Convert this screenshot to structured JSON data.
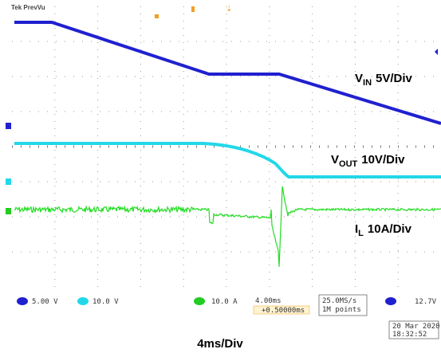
{
  "header": {
    "title": "Tek PrevVu"
  },
  "channel_labels": [
    {
      "symbol": "V",
      "subscript": "IN",
      "scale": "5V/Div"
    },
    {
      "symbol": "V",
      "subscript": "OUT",
      "scale": "10V/Div"
    },
    {
      "symbol": "I",
      "subscript": "L",
      "scale": "10A/Div"
    }
  ],
  "status_bar": {
    "ch1": "5.00 V",
    "ch2": "10.0 V",
    "ch3": "10.0 A",
    "timebase": "4.00ms",
    "position": "+0.50000ms",
    "sample_rate": "25.0MS/s",
    "record": "1M points",
    "trigger_level": "12.7V",
    "date": "20 Mar 2020",
    "time": "18:32:52"
  },
  "footer": "4ms/Div"
}
